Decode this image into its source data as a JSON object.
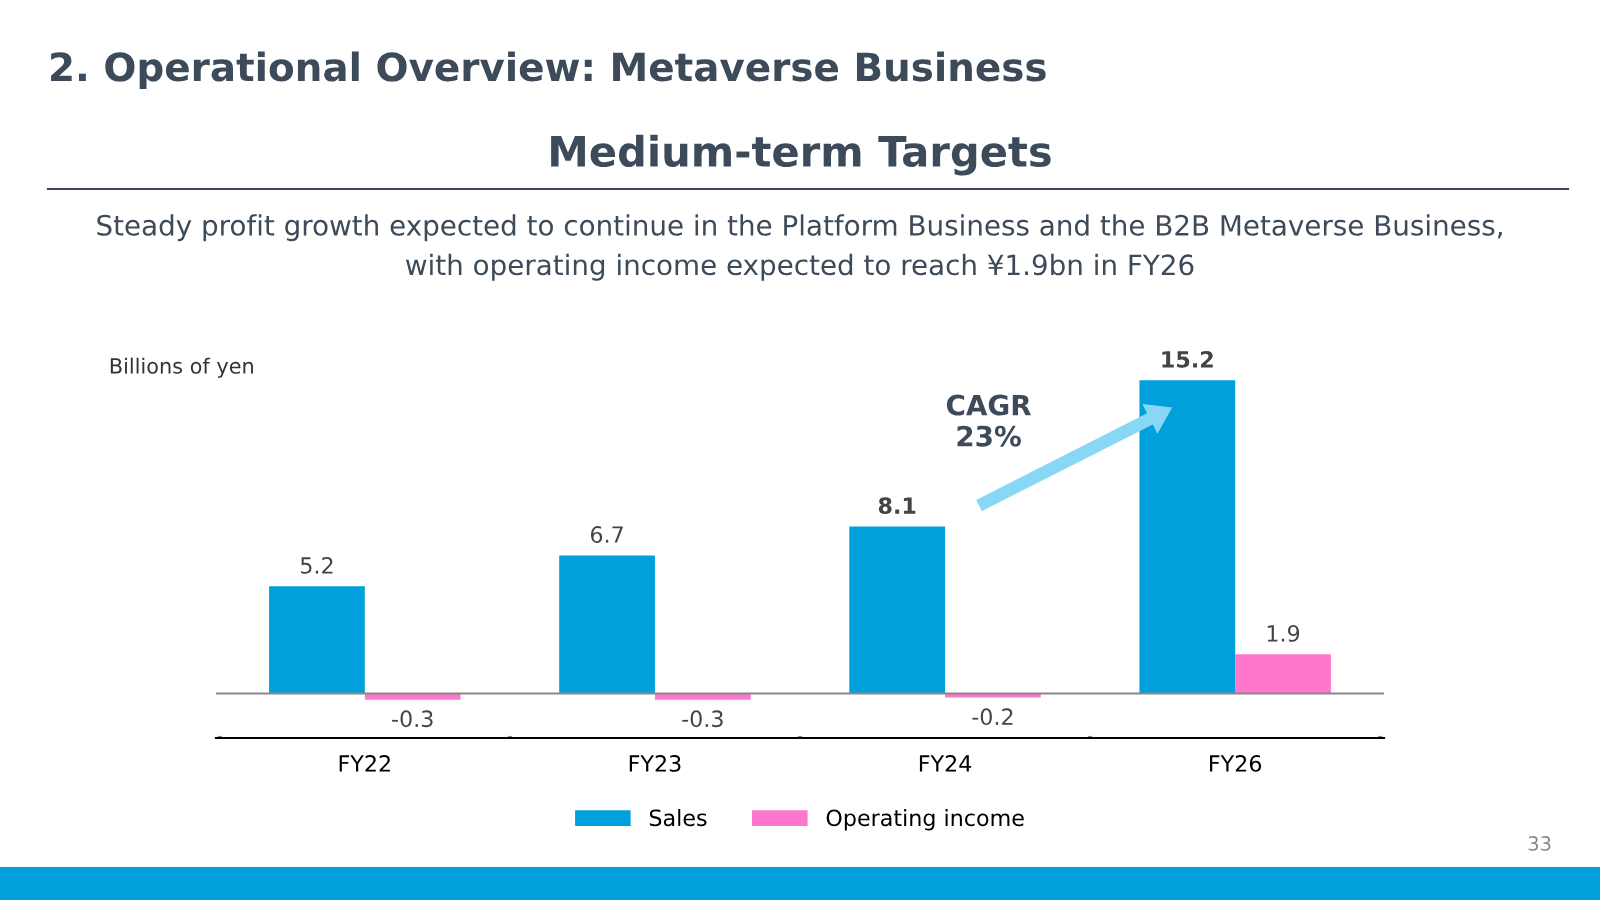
{
  "chart_data": {
    "type": "bar",
    "title": "2. Operational Overview: Metaverse Business",
    "subtitle": "Medium-term Targets",
    "ylabel": "Billions of yen",
    "categories": [
      "FY22",
      "FY23",
      "FY24",
      "FY26"
    ],
    "series": [
      {
        "name": "Sales",
        "color": "#00a0dc",
        "values": [
          5.2,
          6.7,
          8.1,
          15.2
        ]
      },
      {
        "name": "Operating income",
        "color": "#ff77cc",
        "values": [
          -0.3,
          -0.3,
          -0.2,
          1.9
        ]
      }
    ],
    "data_labels": true,
    "legend": "bottom",
    "grid": false,
    "annotations": [
      "Steady profit growth expected to continue in the Platform Business and the B2B Metaverse Business,\nwith operating income expected to reach ¥1.9bn in FY26",
      "CAGR\n23%",
      "33"
    ]
  }
}
